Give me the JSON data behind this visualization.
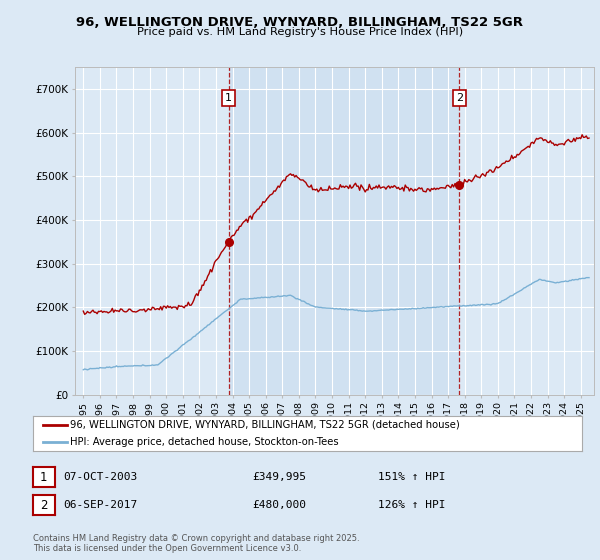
{
  "title": "96, WELLINGTON DRIVE, WYNYARD, BILLINGHAM, TS22 5GR",
  "subtitle": "Price paid vs. HM Land Registry's House Price Index (HPI)",
  "bg_color": "#dce9f5",
  "plot_bg_color": "#dce9f5",
  "red_color": "#aa0000",
  "blue_color": "#7ab0d4",
  "shade_color": "#ccdff0",
  "grid_color": "#ffffff",
  "annotation1_year": 2003.77,
  "annotation2_year": 2017.68,
  "legend_label_red": "96, WELLINGTON DRIVE, WYNYARD, BILLINGHAM, TS22 5GR (detached house)",
  "legend_label_blue": "HPI: Average price, detached house, Stockton-on-Tees",
  "copyright": "Contains HM Land Registry data © Crown copyright and database right 2025.\nThis data is licensed under the Open Government Licence v3.0.",
  "ylim": [
    0,
    750000
  ],
  "xlim_start": 1994.5,
  "xlim_end": 2025.8
}
